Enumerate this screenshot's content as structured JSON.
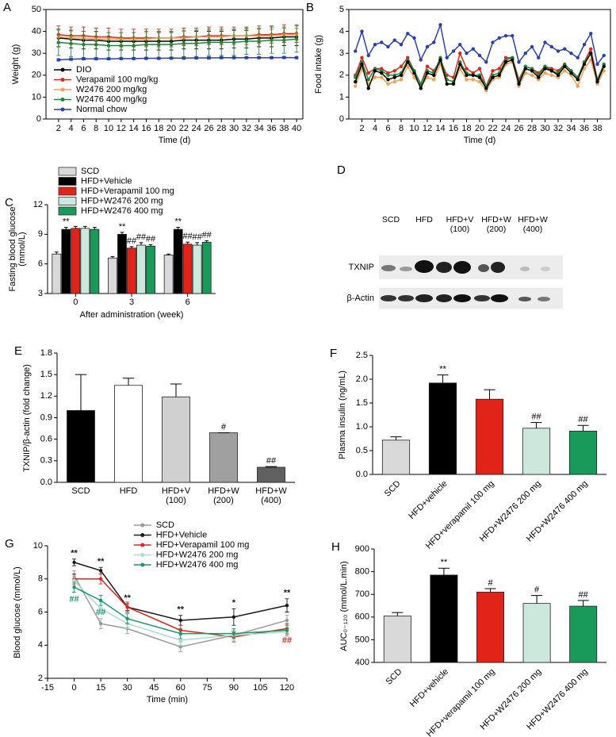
{
  "chart_data": [
    {
      "type": "line",
      "panel": "A",
      "xlabel": "Time (d)",
      "ylabel": "Weight (g)",
      "frame": true,
      "legend": "lower left",
      "x": [
        2,
        4,
        6,
        8,
        10,
        12,
        14,
        16,
        18,
        20,
        22,
        24,
        26,
        28,
        30,
        32,
        34,
        36,
        38,
        40
      ],
      "xlim": [
        0,
        41
      ],
      "xticks": [
        2,
        4,
        6,
        8,
        10,
        12,
        14,
        16,
        18,
        20,
        22,
        24,
        26,
        28,
        30,
        32,
        34,
        36,
        38,
        40
      ],
      "ylim": [
        0,
        50
      ],
      "yticks": [
        0,
        10,
        20,
        30,
        40,
        50
      ],
      "series": [
        {
          "name": "DIO",
          "color": "#000000",
          "values": [
            37,
            36.5,
            36,
            36,
            35.5,
            35.5,
            35.5,
            35.5,
            35.5,
            35.5,
            36,
            36,
            36,
            36,
            36.5,
            36.5,
            37,
            37,
            37.5,
            37.5
          ],
          "errors": [
            4,
            4,
            4,
            4,
            4,
            4,
            4,
            4,
            4,
            4,
            4,
            4,
            4,
            4,
            4,
            4,
            4,
            4,
            4,
            4
          ]
        },
        {
          "name": "Verapamil 100 mg/kg",
          "color": "#e2231a",
          "values": [
            38.5,
            38,
            38,
            37.5,
            37.5,
            37,
            37,
            37,
            37,
            37,
            37.5,
            37.5,
            38,
            38,
            38,
            38,
            38.5,
            38.5,
            39,
            39
          ],
          "errors": [
            4,
            4,
            4,
            4,
            4,
            4,
            4,
            4,
            4,
            4,
            4,
            4,
            4,
            4,
            4,
            4,
            4,
            4,
            4,
            4
          ]
        },
        {
          "name": "W2476 200 mg/kg",
          "color": "#f0a050",
          "values": [
            37.5,
            37,
            37,
            36.5,
            36.5,
            36.5,
            36.5,
            36.5,
            37,
            37,
            37,
            37.5,
            37.5,
            37.5,
            38,
            38,
            38,
            38,
            38.5,
            38.5
          ],
          "errors": [
            3,
            3,
            3,
            3,
            3,
            3,
            3,
            3,
            3,
            3,
            3,
            3,
            3,
            3,
            3,
            3,
            3,
            3,
            3,
            3
          ]
        },
        {
          "name": "W2476 400 mg/kg",
          "color": "#1a8a3a",
          "values": [
            35,
            34.5,
            34,
            34,
            33.5,
            33.5,
            33.5,
            34,
            34,
            34,
            34.5,
            34.5,
            35,
            35,
            35,
            35.5,
            35.5,
            36,
            36,
            36.5
          ],
          "errors": [
            6,
            6,
            6,
            6,
            6,
            6,
            6,
            6,
            6,
            6,
            6,
            6,
            6,
            6,
            6,
            6,
            6,
            6,
            6,
            6
          ]
        },
        {
          "name": "Normal chow",
          "color": "#2a3fb0",
          "values": [
            27,
            27.3,
            27.5,
            27.5,
            27.5,
            27.6,
            27.6,
            27.7,
            27.7,
            27.8,
            27.8,
            27.9,
            27.9,
            28,
            28,
            28,
            28,
            28,
            28.1,
            28
          ],
          "errors": [
            0.5,
            0.5,
            0.5,
            0.5,
            0.5,
            0.5,
            0.5,
            0.5,
            0.5,
            0.5,
            0.5,
            0.5,
            0.5,
            0.5,
            0.5,
            0.5,
            0.5,
            0.5,
            0.5,
            0.5
          ]
        }
      ]
    },
    {
      "type": "line",
      "panel": "B",
      "xlabel": "Time (d)",
      "ylabel": "Food intake (g)",
      "frame": true,
      "x": [
        1,
        2,
        3,
        4,
        5,
        6,
        7,
        8,
        9,
        10,
        11,
        12,
        13,
        14,
        15,
        16,
        17,
        18,
        19,
        20,
        21,
        22,
        23,
        24,
        25,
        26,
        27,
        28,
        29,
        30,
        31,
        32,
        33,
        34,
        35,
        36,
        37,
        38,
        39
      ],
      "xlim": [
        0,
        40
      ],
      "xticks": [
        2,
        4,
        6,
        8,
        10,
        12,
        14,
        16,
        18,
        20,
        22,
        24,
        26,
        28,
        30,
        32,
        34,
        36,
        38
      ],
      "ylim": [
        0,
        5
      ],
      "yticks": [
        0,
        1,
        2,
        3,
        4,
        5
      ],
      "series": [
        {
          "color": "#2a3fb0",
          "values": [
            3.1,
            4.0,
            2.9,
            3.4,
            3.5,
            3.3,
            3.6,
            3.4,
            3.9,
            3.7,
            2.7,
            3.3,
            3.5,
            4.3,
            2.8,
            3.1,
            3.4,
            3.0,
            3.2,
            2.9,
            2.6,
            3.5,
            3.7,
            3.8,
            3.8,
            2.6,
            3.0,
            3.3,
            2.8,
            3.5,
            3.3,
            3.1,
            3.2,
            3.0,
            2.8,
            3.4,
            3.9,
            2.5,
            2.9
          ]
        },
        {
          "color": "#e2231a",
          "values": [
            2.0,
            2.8,
            2.1,
            2.3,
            2.3,
            2.1,
            2.2,
            2.4,
            2.8,
            2.2,
            1.6,
            2.4,
            2.2,
            2.7,
            2.0,
            1.9,
            3.0,
            2.3,
            2.1,
            2.3,
            1.5,
            2.2,
            2.3,
            2.8,
            2.8,
            1.8,
            2.4,
            2.3,
            2.1,
            2.4,
            2.3,
            2.2,
            2.5,
            2.2,
            1.9,
            2.6,
            3.2,
            1.8,
            2.5
          ]
        },
        {
          "color": "#f0a050",
          "values": [
            1.5,
            2.3,
            1.6,
            1.9,
            1.9,
            1.6,
            1.7,
            1.8,
            2.4,
            1.9,
            1.5,
            1.9,
            1.8,
            2.5,
            1.6,
            1.6,
            2.3,
            1.8,
            1.8,
            1.7,
            1.3,
            1.8,
            1.9,
            2.5,
            2.6,
            1.5,
            2.1,
            2.0,
            1.8,
            2.1,
            2.0,
            1.9,
            2.2,
            2.0,
            1.5,
            2.3,
            2.7,
            1.6,
            2.2
          ]
        },
        {
          "color": "#1a8a3a",
          "values": [
            1.9,
            2.6,
            1.8,
            2.3,
            2.2,
            2.0,
            2.0,
            2.1,
            2.7,
            2.2,
            1.6,
            2.2,
            2.1,
            2.8,
            1.8,
            1.7,
            2.6,
            2.1,
            2.0,
            2.0,
            1.5,
            2.0,
            2.1,
            2.7,
            2.8,
            1.7,
            2.4,
            2.3,
            2.0,
            2.4,
            2.2,
            2.1,
            2.5,
            2.2,
            1.9,
            2.6,
            3.0,
            1.8,
            2.5
          ]
        },
        {
          "color": "#000000",
          "values": [
            1.7,
            2.5,
            1.4,
            2.2,
            2.1,
            1.8,
            1.9,
            2.0,
            2.6,
            2.1,
            1.4,
            2.1,
            2.0,
            2.7,
            1.6,
            1.6,
            2.5,
            2.0,
            2.0,
            1.9,
            1.4,
            1.9,
            2.0,
            2.6,
            2.7,
            1.6,
            2.3,
            2.2,
            1.9,
            2.3,
            2.2,
            2.0,
            2.4,
            2.1,
            1.8,
            2.5,
            3.0,
            1.7,
            2.4
          ]
        }
      ]
    },
    {
      "type": "bar",
      "panel": "C",
      "xlabel": "After administration (week)",
      "ylabel": "Fasting blood glucose\n(mmol/L)",
      "legend": "upper left",
      "categories": [
        "0",
        "3",
        "6"
      ],
      "ylim": [
        3,
        12
      ],
      "yticks": [
        3,
        6,
        9,
        12
      ],
      "series": [
        {
          "name": "SCD",
          "color": "#d9d9d9",
          "values": [
            7.0,
            6.6,
            6.9
          ],
          "errors": [
            0.2,
            0.15,
            0.1
          ]
        },
        {
          "name": "HFD+Vehicle",
          "color": "#000000",
          "values": [
            9.5,
            9.0,
            9.5
          ],
          "errors": [
            0.2,
            0.2,
            0.2
          ]
        },
        {
          "name": "HFD+Verapamil 100 mg",
          "color": "#e2231a",
          "values": [
            9.6,
            7.6,
            8.0
          ],
          "errors": [
            0.2,
            0.15,
            0.2
          ]
        },
        {
          "name": "HFD+W2476 200 mg",
          "color": "#cce8dc",
          "values": [
            9.6,
            7.9,
            7.9
          ],
          "errors": [
            0.2,
            0.25,
            0.25
          ]
        },
        {
          "name": "HFD+W2476 400 mg",
          "color": "#1a9a5a",
          "values": [
            9.5,
            7.8,
            8.2
          ],
          "errors": [
            0.2,
            0.15,
            0.15
          ]
        }
      ],
      "annotations": [
        {
          "text": "**",
          "series": 1,
          "index": 0
        },
        {
          "text": "**",
          "series": 1,
          "index": 1
        },
        {
          "text": "##",
          "series": 2,
          "index": 1
        },
        {
          "text": "##",
          "series": 3,
          "index": 1
        },
        {
          "text": "##",
          "series": 4,
          "index": 1
        },
        {
          "text": "**",
          "series": 1,
          "index": 2
        },
        {
          "text": "##",
          "series": 2,
          "index": 2
        },
        {
          "text": "##",
          "series": 3,
          "index": 2
        },
        {
          "text": "##",
          "series": 4,
          "index": 2
        }
      ]
    },
    {
      "type": "bar",
      "panel": "E",
      "ylabel": "TXNIP/β-actin (fold change)",
      "categories": [
        "SCD",
        "HFD",
        "HFD+V\n(100)",
        "HFD+W\n(200)",
        "HFD+W\n(400)"
      ],
      "colors": [
        "#000000",
        "#ffffff",
        "#d0d0d0",
        "#a0a0a0",
        "#606060"
      ],
      "ylim": [
        0,
        1.8
      ],
      "yticks": [
        {
          "value": 0,
          "label": "0.0"
        },
        0.3,
        0.6,
        0.9,
        1.2,
        1.5,
        1.8
      ],
      "series": [
        {
          "values": [
            1.0,
            1.35,
            1.19,
            0.69,
            0.21
          ],
          "errors": [
            0.5,
            0.1,
            0.18,
            0,
            0.01
          ]
        }
      ],
      "annotations": [
        {
          "text": "#",
          "series": 0,
          "index": 3
        },
        {
          "text": "##",
          "series": 0,
          "index": 4
        }
      ]
    },
    {
      "type": "bar",
      "panel": "F",
      "ylabel": "Plasma insulin (ng/mL)",
      "rotate_labels": true,
      "categories": [
        "SCD",
        "HFD+vehicle",
        "HFD+verapamil 100 mg",
        "HFD+W2476 200 mg",
        "HFD+W2476 400 mg"
      ],
      "colors": [
        "#d9d9d9",
        "#000000",
        "#e2231a",
        "#cce8dc",
        "#1a9a5a"
      ],
      "ylim": [
        0,
        2.5
      ],
      "yticks": [
        {
          "value": 0,
          "label": "0.0"
        },
        0.5,
        {
          "value": 1,
          "label": "1.0"
        },
        1.5,
        {
          "value": 2,
          "label": "2.0"
        },
        2.5
      ],
      "series": [
        {
          "values": [
            0.72,
            1.92,
            1.58,
            0.97,
            0.91
          ],
          "errors": [
            0.07,
            0.17,
            0.2,
            0.12,
            0.12
          ]
        }
      ],
      "annotations": [
        {
          "text": "**",
          "series": 0,
          "index": 1
        },
        {
          "text": "##",
          "series": 0,
          "index": 3
        },
        {
          "text": "##",
          "series": 0,
          "index": 4
        }
      ]
    },
    {
      "type": "line",
      "panel": "G",
      "xlabel": "Time (min)",
      "ylabel": "Blood glucose (mmol/L)",
      "legend": "upper center",
      "x": [
        0,
        15,
        30,
        60,
        90,
        120
      ],
      "xlim": [
        -15,
        120
      ],
      "xticks": [
        -15,
        0,
        15,
        30,
        45,
        60,
        75,
        90,
        105,
        120
      ],
      "ylim": [
        2,
        10
      ],
      "yticks": [
        2,
        4,
        6,
        8,
        10
      ],
      "series": [
        {
          "name": "SCD",
          "color": "#9a9a9a",
          "values": [
            8.2,
            5.3,
            5.0,
            3.9,
            4.6,
            5.5
          ],
          "errors": [
            0.3,
            0.3,
            0.3,
            0.3,
            0.3,
            0.3
          ]
        },
        {
          "name": "HFD+Vehicle",
          "color": "#1a1a1a",
          "values": [
            9.0,
            8.5,
            6.3,
            5.5,
            5.7,
            6.4
          ],
          "errors": [
            0.2,
            0.2,
            0.2,
            0.3,
            0.5,
            0.4
          ]
        },
        {
          "name": "HFD+Verapamil 100 mg",
          "color": "#e2231a",
          "values": [
            8.0,
            8.0,
            6.3,
            4.9,
            4.5,
            5.0
          ],
          "errors": [
            0.3,
            0.3,
            0.3,
            0.3,
            0.3,
            0.3
          ]
        },
        {
          "name": "HFD+W2476 200 mg",
          "color": "#a8dcd0",
          "values": [
            7.9,
            6.2,
            5.3,
            4.3,
            4.6,
            4.8
          ],
          "errors": [
            0.3,
            0.3,
            0.3,
            0.3,
            0.3,
            0.3
          ]
        },
        {
          "name": "HFD+W2476 400 mg",
          "color": "#1a9a6a",
          "values": [
            7.5,
            6.7,
            5.6,
            4.7,
            4.7,
            4.9
          ],
          "errors": [
            0.3,
            0.3,
            0.3,
            0.3,
            0.3,
            0.3
          ]
        }
      ],
      "annotations": [
        {
          "text": "**",
          "series": 1,
          "index": 0
        },
        {
          "text": "**",
          "series": 1,
          "index": 1
        },
        {
          "text": "**",
          "series": 1,
          "index": 2
        },
        {
          "text": "**",
          "series": 1,
          "index": 3
        },
        {
          "text": "*",
          "series": 1,
          "index": 4
        },
        {
          "text": "**",
          "series": 1,
          "index": 5
        },
        {
          "text": "##",
          "series": 4,
          "index": 0,
          "below": true
        },
        {
          "text": "##",
          "series": 4,
          "index": 1,
          "below": true
        },
        {
          "text": "##",
          "series": 2,
          "index": 5,
          "below": true
        }
      ]
    },
    {
      "type": "bar",
      "panel": "H",
      "ylabel": "AUC₀₋₁₂₀ (mmol/L.min)",
      "rotate_labels": true,
      "categories": [
        "SCD",
        "HFD+vehicle",
        "HFD+verapamil 100 mg",
        "HFD+W2476 200 mg",
        "HFD+W2476 400 mg"
      ],
      "colors": [
        "#d9d9d9",
        "#000000",
        "#e2231a",
        "#cce8dc",
        "#1a9a5a"
      ],
      "ylim": [
        400,
        900
      ],
      "yticks": [
        400,
        500,
        600,
        700,
        800,
        900
      ],
      "series": [
        {
          "values": [
            605,
            785,
            710,
            660,
            648
          ],
          "errors": [
            15,
            30,
            15,
            35,
            25
          ]
        }
      ],
      "annotations": [
        {
          "text": "**",
          "series": 0,
          "index": 1
        },
        {
          "text": "#",
          "series": 0,
          "index": 2
        },
        {
          "text": "#",
          "series": 0,
          "index": 3
        },
        {
          "text": "##",
          "series": 0,
          "index": 4
        }
      ]
    }
  ],
  "blot": {
    "panel": "D",
    "lanes": [
      "SCD",
      "HFD",
      "HFD+V\n(100)",
      "HFD+W\n(200)",
      "HFD+W\n(400)"
    ],
    "rows": [
      "TXNIP",
      "β-Actin"
    ]
  }
}
